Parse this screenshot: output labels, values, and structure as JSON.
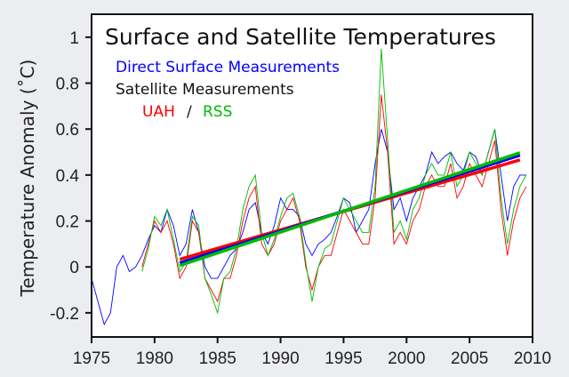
{
  "chart_data": {
    "type": "line",
    "title": "Surface and Satellite Temperatures",
    "legend": {
      "surface": "Direct Surface Measurements",
      "satellite_header": "Satellite Measurements",
      "uah": "UAH",
      "sep": "/",
      "rss": "RSS"
    },
    "ylabel": "Temperature Anomaly (˚C)",
    "xlabel": "",
    "xlim": [
      1975,
      2010
    ],
    "ylim": [
      -0.305,
      1.1
    ],
    "xticks": [
      "1975",
      "1980",
      "1985",
      "1990",
      "1995",
      "2000",
      "2005",
      "2010"
    ],
    "yticks": [
      "-0.2",
      "0",
      "0.2",
      "0.4",
      "0.6",
      "0.8",
      "1"
    ],
    "grid": false,
    "legend_placement": "top-left",
    "colors": {
      "surface": "#0000ff",
      "uah": "#ff0000",
      "rss": "#00bb00",
      "background": "#ebedf0"
    },
    "series": [
      {
        "name": "Direct Surface Measurements",
        "key": "surface",
        "x_start": 1975,
        "x_step": 0.5,
        "values": [
          -0.05,
          -0.15,
          -0.25,
          -0.2,
          0.0,
          0.05,
          -0.02,
          0.0,
          0.05,
          0.12,
          0.18,
          0.15,
          0.25,
          0.18,
          0.05,
          0.1,
          0.25,
          0.15,
          0.0,
          -0.05,
          -0.05,
          0.0,
          0.05,
          0.08,
          0.15,
          0.25,
          0.28,
          0.15,
          0.1,
          0.18,
          0.3,
          0.25,
          0.25,
          0.22,
          0.1,
          0.05,
          0.1,
          0.12,
          0.15,
          0.22,
          0.3,
          0.28,
          0.15,
          0.2,
          0.25,
          0.45,
          0.6,
          0.5,
          0.25,
          0.3,
          0.2,
          0.3,
          0.35,
          0.4,
          0.5,
          0.45,
          0.48,
          0.5,
          0.45,
          0.42,
          0.5,
          0.48,
          0.4,
          0.5,
          0.6,
          0.4,
          0.2,
          0.35,
          0.4,
          0.4
        ]
      },
      {
        "name": "UAH",
        "key": "uah",
        "x_start": 1979,
        "x_step": 0.5,
        "values": [
          0.0,
          0.1,
          0.2,
          0.15,
          0.2,
          0.1,
          -0.05,
          0.0,
          0.2,
          0.15,
          -0.05,
          -0.1,
          -0.15,
          -0.05,
          -0.05,
          0.05,
          0.2,
          0.3,
          0.35,
          0.1,
          0.05,
          0.1,
          0.2,
          0.25,
          0.3,
          0.2,
          0.0,
          -0.1,
          0.0,
          0.05,
          0.05,
          0.15,
          0.25,
          0.2,
          0.15,
          0.1,
          0.1,
          0.3,
          0.75,
          0.5,
          0.1,
          0.15,
          0.1,
          0.2,
          0.25,
          0.35,
          0.4,
          0.35,
          0.35,
          0.45,
          0.3,
          0.35,
          0.45,
          0.4,
          0.35,
          0.45,
          0.55,
          0.25,
          0.05,
          0.2,
          0.3,
          0.35
        ]
      },
      {
        "name": "RSS",
        "key": "rss",
        "x_start": 1979,
        "x_step": 0.5,
        "values": [
          -0.02,
          0.08,
          0.22,
          0.18,
          0.25,
          0.12,
          -0.02,
          0.02,
          0.22,
          0.18,
          -0.05,
          -0.12,
          -0.2,
          -0.05,
          -0.02,
          0.08,
          0.25,
          0.35,
          0.4,
          0.15,
          0.05,
          0.12,
          0.22,
          0.3,
          0.32,
          0.22,
          0.02,
          -0.15,
          0.0,
          0.08,
          0.1,
          0.2,
          0.3,
          0.25,
          0.2,
          0.15,
          0.15,
          0.35,
          0.95,
          0.55,
          0.15,
          0.2,
          0.12,
          0.25,
          0.3,
          0.4,
          0.45,
          0.4,
          0.4,
          0.5,
          0.35,
          0.4,
          0.5,
          0.45,
          0.4,
          0.5,
          0.6,
          0.3,
          0.1,
          0.25,
          0.35,
          0.4
        ]
      }
    ],
    "trend_lines": [
      {
        "key": "uah",
        "x": [
          1982,
          2009
        ],
        "y": [
          0.033,
          0.466
        ]
      },
      {
        "key": "surface",
        "x": [
          1982,
          2009
        ],
        "y": [
          0.017,
          0.486
        ]
      },
      {
        "key": "rss",
        "x": [
          1982,
          2009
        ],
        "y": [
          0.006,
          0.497
        ]
      }
    ]
  }
}
